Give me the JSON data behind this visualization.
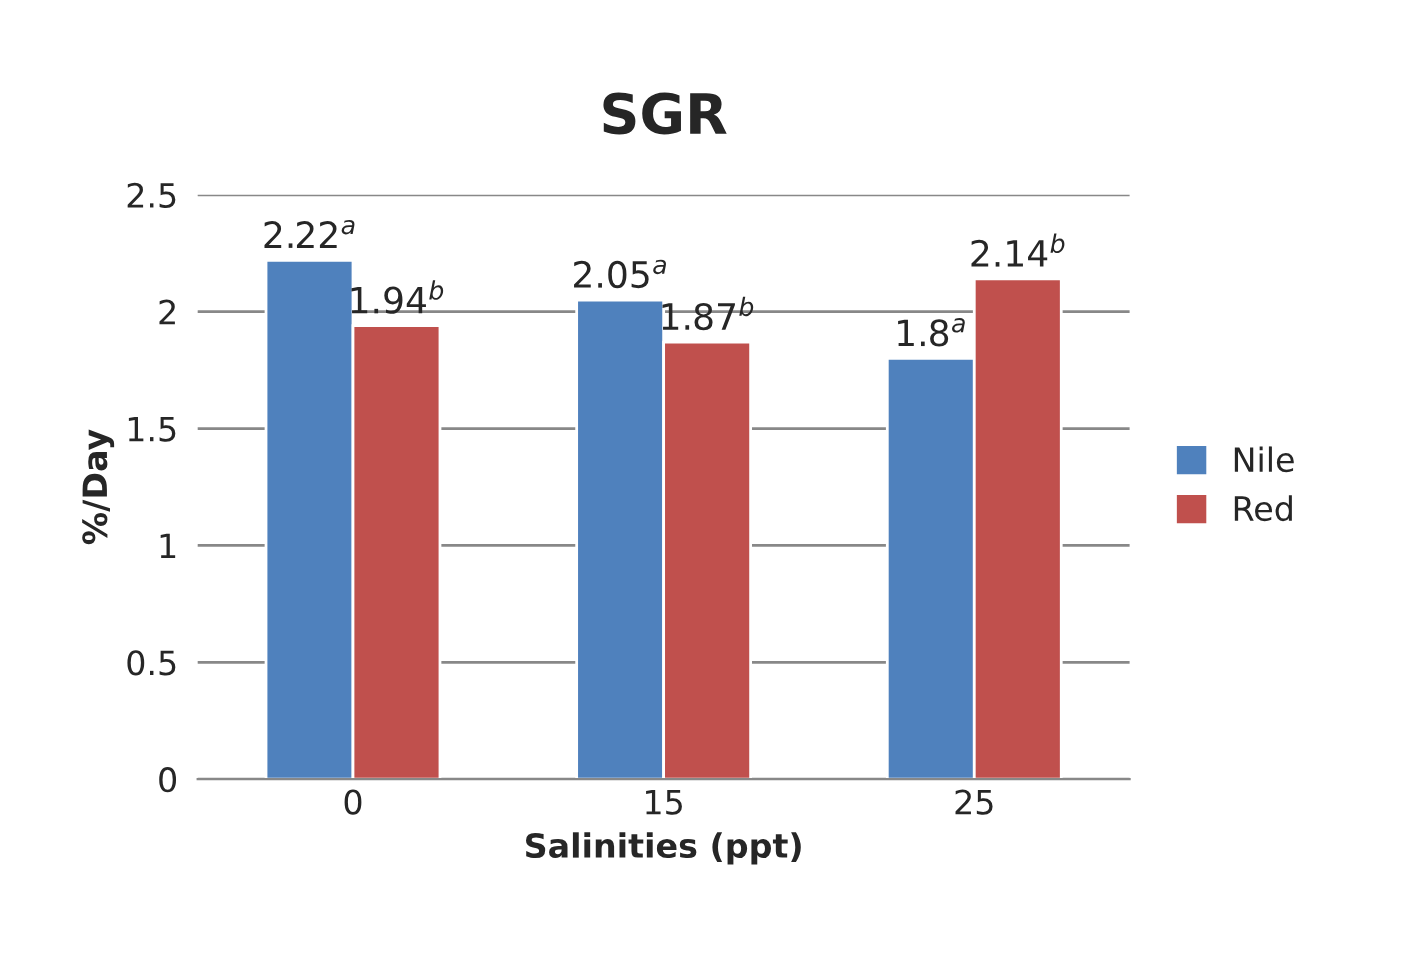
{
  "chart_data": {
    "type": "bar",
    "title": "SGR",
    "xlabel": "Salinities (ppt)",
    "ylabel": "%/Day",
    "categories": [
      "0",
      "15",
      "25"
    ],
    "series": [
      {
        "name": "Nile",
        "color": "#4f81bd",
        "values": [
          2.22,
          2.05,
          1.8
        ],
        "value_labels": [
          "2.22$^{a}$",
          "2.05$^{a}$",
          "1.8$^{a}$"
        ]
      },
      {
        "name": "Red",
        "color": "#c0504d",
        "values": [
          1.94,
          1.87,
          2.14
        ],
        "value_labels": [
          "1.94$^{b}$",
          "1.87$^{b}$",
          "2.14$^{b}$"
        ]
      }
    ],
    "ylim": [
      0,
      2.5
    ],
    "yticks": [
      0,
      0.5,
      1,
      1.5,
      2,
      2.5
    ],
    "grid": "y",
    "legend": "right"
  }
}
